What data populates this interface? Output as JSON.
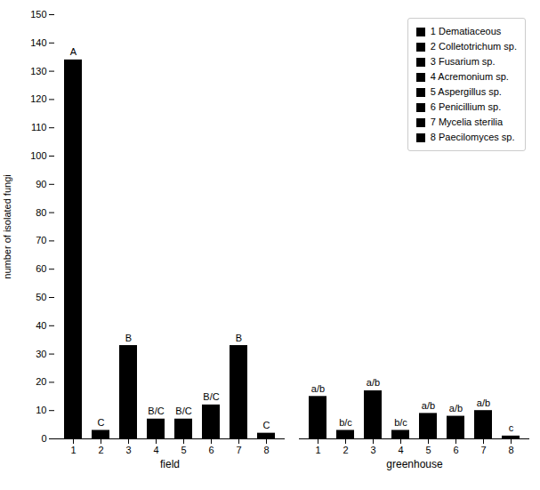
{
  "chart_data": {
    "type": "bar",
    "categories": [
      "1",
      "2",
      "3",
      "4",
      "5",
      "6",
      "7",
      "8"
    ],
    "groups": [
      {
        "name": "field",
        "values": [
          134,
          3,
          33,
          7,
          7,
          12,
          33,
          2
        ],
        "labels": [
          "A",
          "C",
          "B",
          "B/C",
          "B/C",
          "B/C",
          "B",
          "C"
        ]
      },
      {
        "name": "greenhouse",
        "values": [
          15,
          3,
          17,
          3,
          9,
          8,
          10,
          1
        ],
        "labels": [
          "a/b",
          "b/c",
          "a/b",
          "b/c",
          "a/b",
          "a/b",
          "a/b",
          "c"
        ]
      }
    ],
    "color": "#000000",
    "ylabel": "number of isolated fungi",
    "ylim": [
      0,
      150
    ],
    "yticks": [
      0,
      10,
      20,
      30,
      40,
      50,
      60,
      70,
      80,
      90,
      100,
      110,
      120,
      130,
      140,
      150
    ],
    "legend": "upper right",
    "legend_entries": [
      "1 Dematiaceous",
      "2 Colletotrichum sp.",
      "3 Fusarium sp.",
      "4 Acremonium sp.",
      "5 Aspergillus sp.",
      "6 Penicillium sp.",
      "7 Mycelia sterilia",
      "8 Paecilomyces sp."
    ]
  }
}
